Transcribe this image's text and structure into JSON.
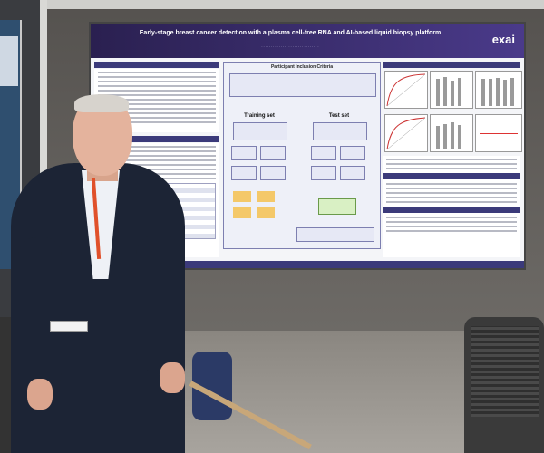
{
  "poster": {
    "title": "Early-stage breast cancer detection with a plasma cell-free RNA and AI-based liquid biopsy platform",
    "logo": "exai",
    "center_panel_title": "Participant Inclusion Criteria",
    "training_set": "Training set",
    "test_set": "Test set"
  },
  "colors": {
    "poster_header": "#2a2050",
    "jacket": "#1c2435",
    "lanyard": "#e0502a"
  }
}
